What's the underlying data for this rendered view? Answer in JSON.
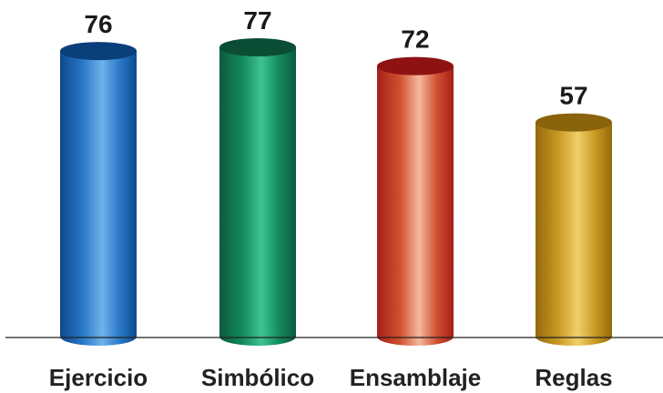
{
  "chart_data": {
    "type": "bar",
    "style": "cylinder",
    "categories": [
      "Ejercicio",
      "Simbólico",
      "Ensamblaje",
      "Reglas"
    ],
    "values": [
      76,
      77,
      72,
      57
    ],
    "colors": [
      {
        "dark": "#0d4a8e",
        "mid": "#2a78c8",
        "light": "#6fb2ec",
        "top": "#0a3f7c"
      },
      {
        "dark": "#0a5a3c",
        "mid": "#138a5e",
        "light": "#3fc392",
        "top": "#0b4d34"
      },
      {
        "dark": "#a3201a",
        "mid": "#d0502f",
        "light": "#f4b8a0",
        "top": "#8e1212"
      },
      {
        "dark": "#94690c",
        "mid": "#c99a22",
        "light": "#f0cf6b",
        "top": "#8a640c"
      }
    ],
    "grid": false,
    "show_value_labels": true
  }
}
